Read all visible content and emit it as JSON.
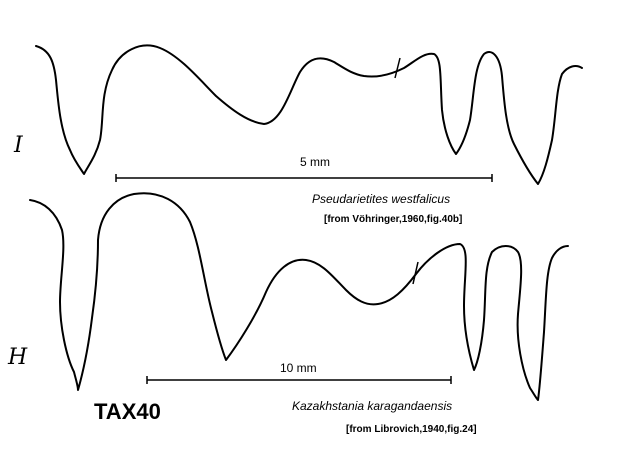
{
  "upper": {
    "numeral": "I",
    "scale_label": "5 mm",
    "species": "Pseudarietites westfalicus",
    "source": "[from Vöhringer,1960,fig.40b]"
  },
  "lower": {
    "numeral": "H",
    "scale_label": "10 mm",
    "species": "Kazakhstania karagandaensis",
    "source": "[from Librovich,1940,fig.24]"
  },
  "tax_id": "TAX40"
}
